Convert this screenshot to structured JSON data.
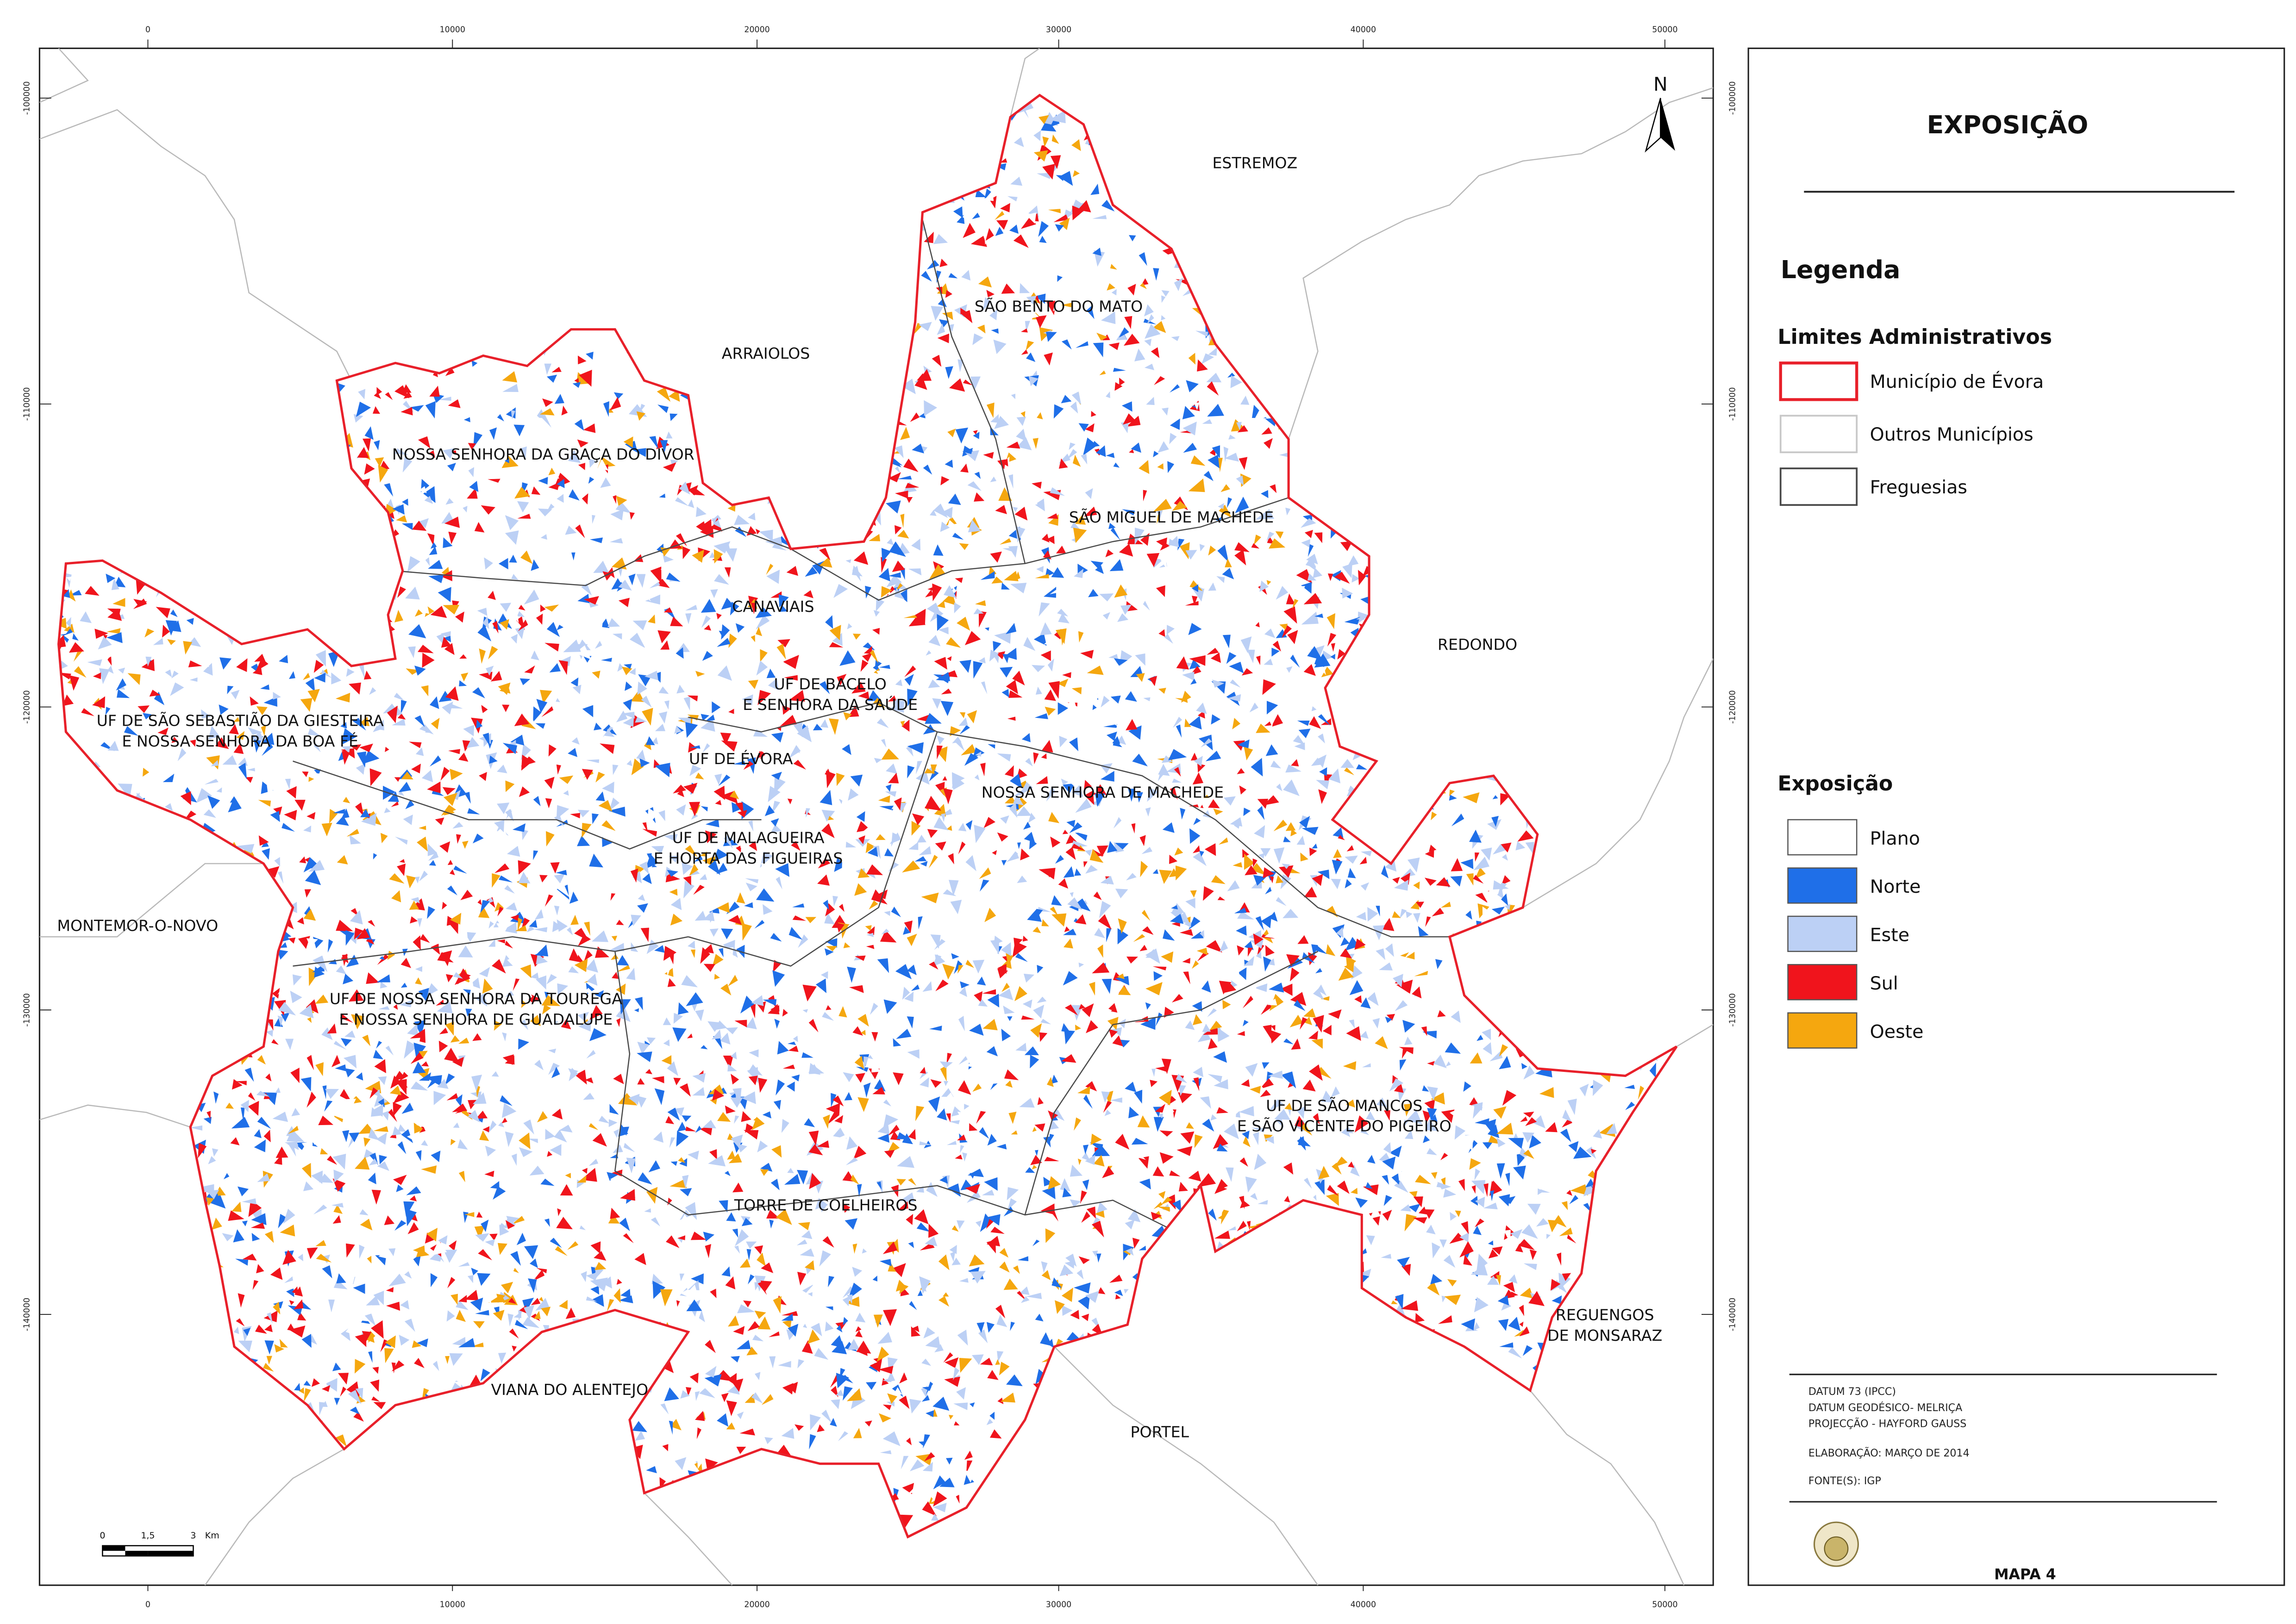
{
  "title": "EXPOSIÇÃO",
  "legend": {
    "heading": "Legenda",
    "admin": {
      "title": "Limites Administrativos",
      "items": [
        {
          "label": "Município de Évora",
          "color": "#e8202a"
        },
        {
          "label": "Outros Municípios",
          "color": "#c8c8c8"
        },
        {
          "label": "Freguesias",
          "color": "#4a4a4a"
        }
      ]
    },
    "exposure": {
      "title": "Exposição",
      "items": [
        {
          "label": "Plano",
          "color": "#ffffff"
        },
        {
          "label": "Norte",
          "color": "#1f6fe8"
        },
        {
          "label": "Este",
          "color": "#bcd0f5"
        },
        {
          "label": "Sul",
          "color": "#f0141c"
        },
        {
          "label": "Oeste",
          "color": "#f5a70f"
        }
      ]
    }
  },
  "notes": [
    "DATUM 73 (IPCC)",
    "DATUM GEODÉSICO- MELRIÇA",
    "PROJECÇÃO - HAYFORD GAUSS",
    "ELABORAÇÃO: MARÇO DE 2014",
    "FONTE(S): IGP"
  ],
  "map_number": "MAPA 4",
  "map": {
    "x_ticks": [
      "0",
      "10000",
      "20000",
      "30000",
      "40000",
      "50000"
    ],
    "y_ticks": [
      "-100000",
      "-110000",
      "-120000",
      "-130000",
      "-140000"
    ],
    "north": "N",
    "scale": [
      "0",
      "1,5",
      "3",
      "Km"
    ],
    "places": [
      {
        "lines": [
          "ESTREMOZ"
        ]
      },
      {
        "lines": [
          "ARRAIOLOS"
        ]
      },
      {
        "lines": [
          "REDONDO"
        ]
      },
      {
        "lines": [
          "MONTEMOR-O-NOVO"
        ]
      },
      {
        "lines": [
          "VIANA DO ALENTEJO"
        ]
      },
      {
        "lines": [
          "PORTEL"
        ]
      },
      {
        "lines": [
          "REGUENGOS",
          "DE MONSARAZ"
        ]
      },
      {
        "lines": [
          "SÃO BENTO DO MATO"
        ]
      },
      {
        "lines": [
          "NOSSA SENHORA DA GRAÇA DO DIVOR"
        ]
      },
      {
        "lines": [
          "SÃO MIGUEL DE MACHEDE"
        ]
      },
      {
        "lines": [
          "CANAVIAIS"
        ]
      },
      {
        "lines": [
          "UF DE BACELO",
          "E SENHORA DA SAÚDE"
        ]
      },
      {
        "lines": [
          "UF DE SÃO SEBASTIÃO DA GIESTEIRA",
          "E NOSSA SENHORA DA BOA FÉ"
        ]
      },
      {
        "lines": [
          "UF DE ÉVORA"
        ]
      },
      {
        "lines": [
          "NOSSA SENHORA DE MACHEDE"
        ]
      },
      {
        "lines": [
          "UF DE MALAGUEIRA",
          "E HORTA DAS FIGUEIRAS"
        ]
      },
      {
        "lines": [
          "UF DE NOSSA SENHORA DA TOUREGA",
          "E NOSSA SENHORA DE GUADALUPE"
        ]
      },
      {
        "lines": [
          "UF DE SÃO MANCOS",
          "E SÃO VICENTE DO PIGEIRO"
        ]
      },
      {
        "lines": [
          "TORRE DE COELHEIROS"
        ]
      }
    ]
  }
}
